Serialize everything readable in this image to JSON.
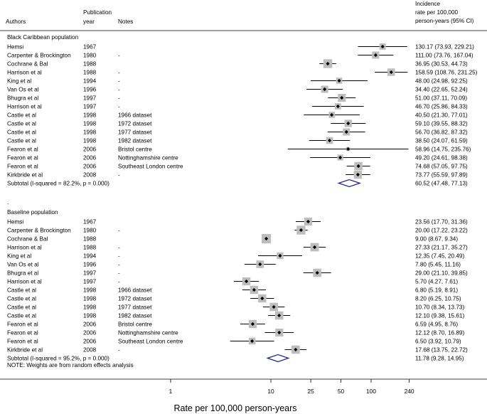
{
  "chart_data": {
    "type": "forest",
    "title": "",
    "xlabel": "Rate per 100,000 person-years",
    "xscale": "log",
    "xlim": [
      0.35,
      280
    ],
    "xticks": [
      {
        "value": 1,
        "label": "1"
      },
      {
        "value": 10,
        "label": "10"
      },
      {
        "value": 25,
        "label": "25"
      },
      {
        "value": 50,
        "label": "50"
      },
      {
        "value": 100,
        "label": "100"
      },
      {
        "value": 240,
        "label": "240"
      }
    ],
    "headers": {
      "authors": "Authors",
      "year_line1": "Publication",
      "year_line2": "year",
      "notes": "Notes",
      "estimate_line1": "Incidence",
      "estimate_line2": "rate per 100,000",
      "estimate_line3": "person-years (95% CI)"
    },
    "groups": [
      {
        "name": "Black Caribbean population",
        "studies": [
          {
            "author": "Hemsi",
            "year": "1967",
            "note": "",
            "rate": 130.17,
            "lower": 73.93,
            "upper": 229.21,
            "weight": 3.6,
            "text": "130.17 (73.93, 229.21)"
          },
          {
            "author": "Carpenter & Brockington",
            "year": "1980",
            "note": "-",
            "rate": 111.0,
            "lower": 73.76,
            "upper": 167.04,
            "weight": 4.6,
            "text": "111.00 (73.76, 167.04)"
          },
          {
            "author": "Cochrane & Bal",
            "year": "1988",
            "note": "",
            "rate": 36.95,
            "lower": 30.53,
            "upper": 44.73,
            "weight": 6.9,
            "text": "36.95 (30.53, 44.73)"
          },
          {
            "author": "Harrison et al",
            "year": "1988",
            "note": "-",
            "rate": 158.59,
            "lower": 108.76,
            "upper": 231.25,
            "weight": 5.0,
            "text": "158.59 (108.76, 231.25)"
          },
          {
            "author": "King et al",
            "year": "1994",
            "note": "-",
            "rate": 48.0,
            "lower": 24.98,
            "upper": 92.25,
            "weight": 3.3,
            "text": "48.00 (24.98, 92.25)"
          },
          {
            "author": "Van Os et al",
            "year": "1996",
            "note": "-",
            "rate": 34.4,
            "lower": 22.65,
            "upper": 52.24,
            "weight": 4.5,
            "text": "34.40 (22.65, 52.24)"
          },
          {
            "author": "Bhugra et al",
            "year": "1997",
            "note": "-",
            "rate": 51.0,
            "lower": 37.11,
            "upper": 70.09,
            "weight": 5.5,
            "text": "51.00 (37.11, 70.09)"
          },
          {
            "author": "Harrison et al",
            "year": "1997",
            "note": "-",
            "rate": 46.7,
            "lower": 25.86,
            "upper": 84.33,
            "weight": 3.5,
            "text": "46.70 (25.86, 84.33)"
          },
          {
            "author": "Castle et al",
            "year": "1998",
            "note": "1966 dataset",
            "rate": 40.5,
            "lower": 21.3,
            "upper": 77.01,
            "weight": 3.3,
            "text": "40.50 (21.30, 77.01)"
          },
          {
            "author": "Castle et al",
            "year": "1998",
            "note": "1972 dataset",
            "rate": 59.1,
            "lower": 39.55,
            "upper": 88.32,
            "weight": 4.7,
            "text": "59.10 (39.55, 88.32)"
          },
          {
            "author": "Castle et al",
            "year": "1998",
            "note": "1977 dataset",
            "rate": 56.7,
            "lower": 36.82,
            "upper": 87.32,
            "weight": 4.4,
            "text": "56.70 (36.82, 87.32)"
          },
          {
            "author": "Castle et al",
            "year": "1998",
            "note": "1982 dataset",
            "rate": 38.5,
            "lower": 24.07,
            "upper": 61.59,
            "weight": 4.2,
            "text": "38.50 (24.07, 61.59)"
          },
          {
            "author": "Fearon et al",
            "year": "2006",
            "note": "Bristol centre",
            "rate": 58.96,
            "lower": 14.75,
            "upper": 235.76,
            "weight": 1.4,
            "text": "58.96 (14.75, 235.76)"
          },
          {
            "author": "Fearon et al",
            "year": "2006",
            "note": "Nottinghamshire centre",
            "rate": 49.2,
            "lower": 24.61,
            "upper": 98.38,
            "weight": 3.1,
            "text": "49.20 (24.61, 98.38)"
          },
          {
            "author": "Fearon et al",
            "year": "2006",
            "note": "Southeast London centre",
            "rate": 74.68,
            "lower": 57.05,
            "upper": 97.75,
            "weight": 5.9,
            "text": "74.68 (57.05, 97.75)"
          },
          {
            "author": "Kirkbride et al",
            "year": "2008",
            "note": "-",
            "rate": 73.77,
            "lower": 55.59,
            "upper": 97.89,
            "weight": 5.8,
            "text": "73.77 (55.59, 97.89)"
          }
        ],
        "subtotal": {
          "label": "Subtotal  (I-squared = 82.2%, p = 0.000)",
          "rate": 60.52,
          "lower": 47.48,
          "upper": 77.13,
          "text": "60.52 (47.48, 77.13)"
        }
      },
      {
        "name": "Baseline population",
        "studies": [
          {
            "author": "Hemsi",
            "year": "1967",
            "note": "",
            "rate": 23.56,
            "lower": 17.7,
            "upper": 31.36,
            "weight": 5.6,
            "text": "23.56 (17.70, 31.36)"
          },
          {
            "author": "Carpenter & Brockington",
            "year": "1980",
            "note": "-",
            "rate": 20.0,
            "lower": 17.22,
            "upper": 23.22,
            "weight": 6.9,
            "text": "20.00 (17.22, 23.22)"
          },
          {
            "author": "Cochrane & Bal",
            "year": "1988",
            "note": "",
            "rate": 9.0,
            "lower": 8.67,
            "upper": 9.34,
            "weight": 7.8,
            "text": "9.00 (8.67, 9.34)"
          },
          {
            "author": "Harrison et al",
            "year": "1988",
            "note": "-",
            "rate": 27.33,
            "lower": 21.17,
            "upper": 35.27,
            "weight": 6.2,
            "text": "27.33 (21.17, 35.27)"
          },
          {
            "author": "King et al",
            "year": "1994",
            "note": "-",
            "rate": 12.35,
            "lower": 7.45,
            "upper": 20.49,
            "weight": 4.0,
            "text": "12.35 (7.45, 20.49)"
          },
          {
            "author": "Van Os et al",
            "year": "1996",
            "note": "-",
            "rate": 7.8,
            "lower": 5.45,
            "upper": 11.16,
            "weight": 5.1,
            "text": "7.80 (5.45, 11.16)"
          },
          {
            "author": "Bhugra et al",
            "year": "1997",
            "note": "-",
            "rate": 29.0,
            "lower": 21.1,
            "upper": 39.85,
            "weight": 6.0,
            "text": "29.00 (21.10, 39.85)"
          },
          {
            "author": "Harrison et al",
            "year": "1997",
            "note": "-",
            "rate": 5.7,
            "lower": 4.27,
            "upper": 7.61,
            "weight": 5.7,
            "text": "5.70 (4.27, 7.61)"
          },
          {
            "author": "Castle et al",
            "year": "1998",
            "note": "1966 dataset",
            "rate": 6.8,
            "lower": 5.19,
            "upper": 8.91,
            "weight": 5.9,
            "text": "6.80 (5.19, 8.91)"
          },
          {
            "author": "Castle et al",
            "year": "1998",
            "note": "1972 dataset",
            "rate": 8.2,
            "lower": 6.25,
            "upper": 10.75,
            "weight": 5.9,
            "text": "8.20 (6.25, 10.75)"
          },
          {
            "author": "Castle et al",
            "year": "1998",
            "note": "1977 dataset",
            "rate": 10.7,
            "lower": 8.34,
            "upper": 13.73,
            "weight": 6.1,
            "text": "10.70 (8.34, 13.73)"
          },
          {
            "author": "Castle et al",
            "year": "1998",
            "note": "1982 dataset",
            "rate": 12.1,
            "lower": 9.38,
            "upper": 15.61,
            "weight": 6.1,
            "text": "12.10 (9.38, 15.61)"
          },
          {
            "author": "Fearon et al",
            "year": "2006",
            "note": "Bristol centre",
            "rate": 6.59,
            "lower": 4.95,
            "upper": 8.76,
            "weight": 5.8,
            "text": "6.59 (4.95, 8.76)"
          },
          {
            "author": "Fearon et al",
            "year": "2006",
            "note": "Nottinghamshire centre",
            "rate": 12.12,
            "lower": 8.7,
            "upper": 16.89,
            "weight": 5.6,
            "text": "12.12 (8.70, 16.89)"
          },
          {
            "author": "Fearon et al",
            "year": "2006",
            "note": "Southeast London centre",
            "rate": 6.5,
            "lower": 3.92,
            "upper": 10.79,
            "weight": 4.2,
            "text": "6.50 (3.92, 10.79)"
          },
          {
            "author": "Kirkbride et al",
            "year": "2008",
            "note": "-",
            "rate": 17.68,
            "lower": 13.75,
            "upper": 22.72,
            "weight": 6.1,
            "text": "17.68 (13.75, 22.72)"
          }
        ],
        "subtotal": {
          "label": "Subtotal  (I-squared = 95.2%, p = 0.000)",
          "rate": 11.78,
          "lower": 9.28,
          "upper": 14.95,
          "text": "11.78 (9.28, 14.95)"
        }
      }
    ],
    "group_separator": ".",
    "footnote": "NOTE: Weights are from random effects analysis",
    "colors": {
      "square": "#bdbdbd",
      "diamond": "#1f2a8a",
      "line": "#000000"
    }
  }
}
